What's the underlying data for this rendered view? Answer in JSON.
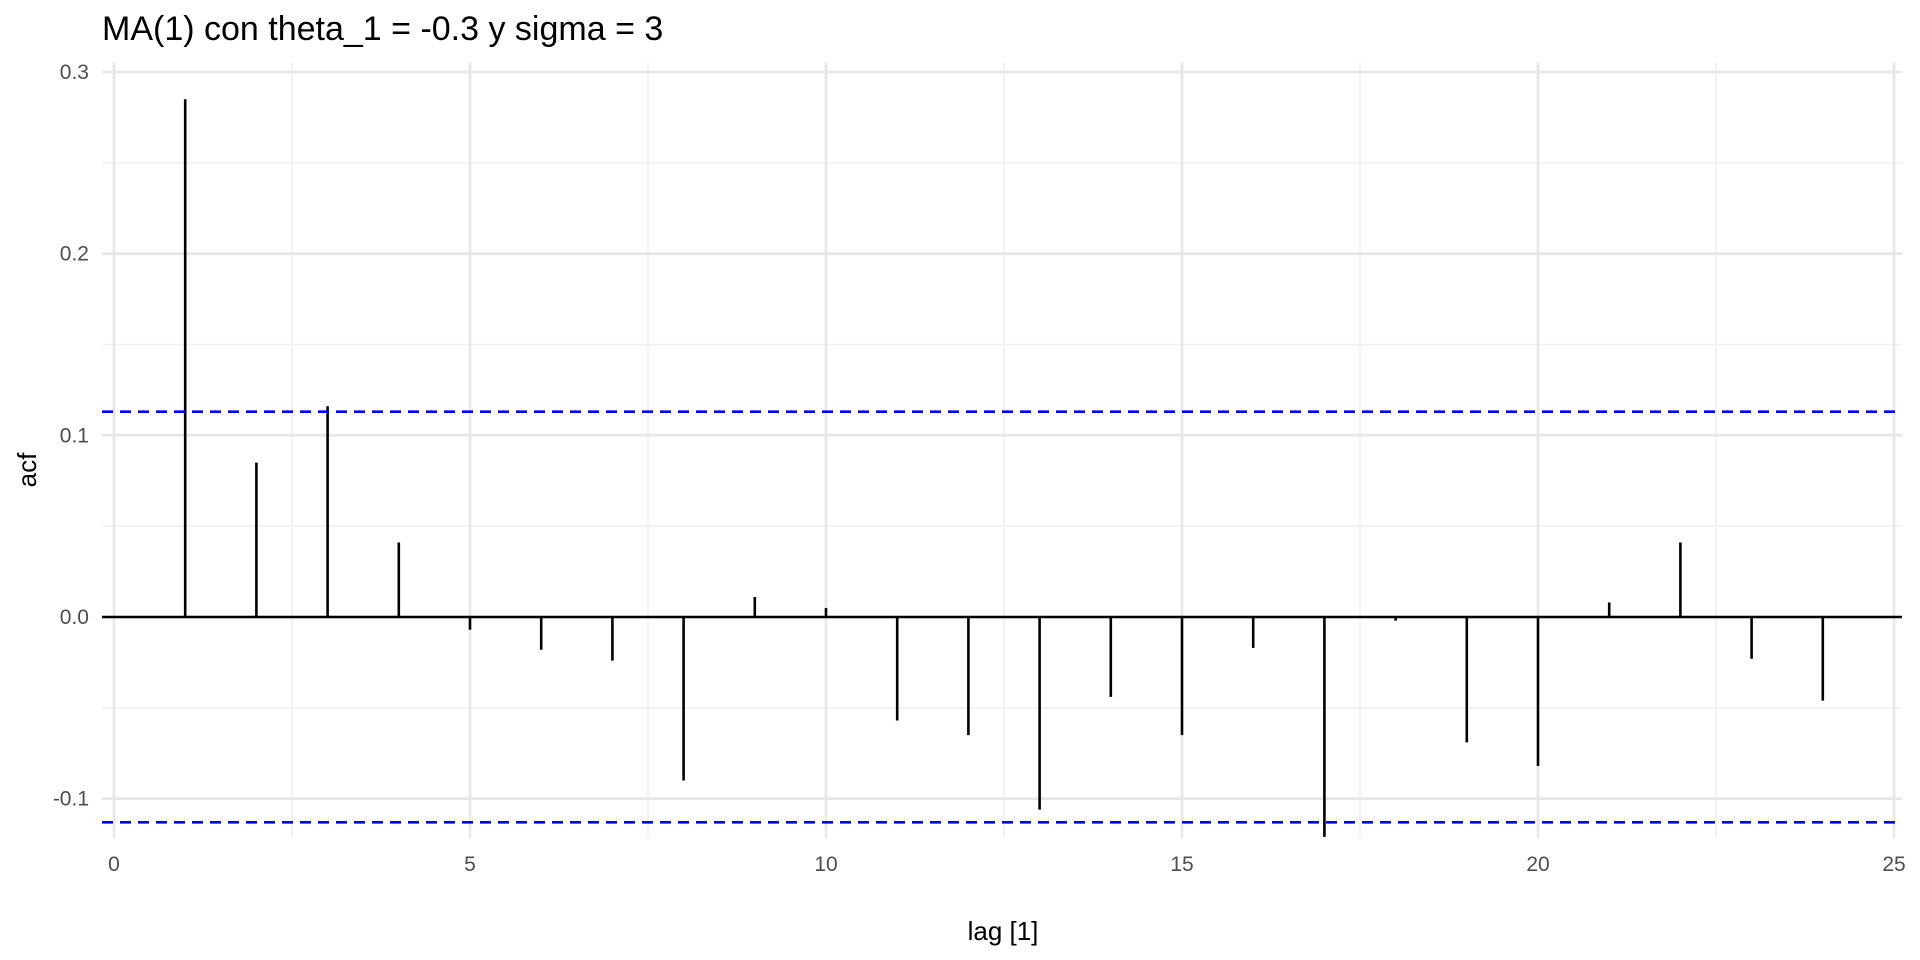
{
  "chart_data": {
    "type": "bar",
    "title": "MA(1) con theta_1 = -0.3 y sigma = 3",
    "xlabel": "lag [1]",
    "ylabel": "acf",
    "xlim": [
      0,
      25
    ],
    "ylim": [
      -0.12,
      0.3
    ],
    "x_ticks": [
      0,
      5,
      10,
      15,
      20,
      25
    ],
    "y_ticks": [
      -0.1,
      0.0,
      0.1,
      0.2,
      0.3
    ],
    "x_tick_labels": [
      "0",
      "5",
      "10",
      "15",
      "20",
      "25"
    ],
    "y_tick_labels": [
      "-0.1",
      "0.0",
      "0.1",
      "0.2",
      "0.3"
    ],
    "grid": true,
    "lags": [
      1,
      2,
      3,
      4,
      5,
      6,
      7,
      8,
      9,
      10,
      11,
      12,
      13,
      14,
      15,
      16,
      17,
      18,
      19,
      20,
      21,
      22,
      23,
      24
    ],
    "values": [
      0.285,
      0.085,
      0.116,
      0.041,
      -0.007,
      -0.018,
      -0.024,
      -0.09,
      0.011,
      0.005,
      -0.057,
      -0.065,
      -0.106,
      -0.044,
      -0.065,
      -0.017,
      -0.121,
      -0.002,
      -0.069,
      -0.082,
      0.008,
      0.041,
      -0.023,
      -0.046
    ],
    "confidence_bound": 0.113,
    "colors": {
      "bars": "#000000",
      "confidence": "#0000ff",
      "zero_line": "#000000"
    }
  }
}
